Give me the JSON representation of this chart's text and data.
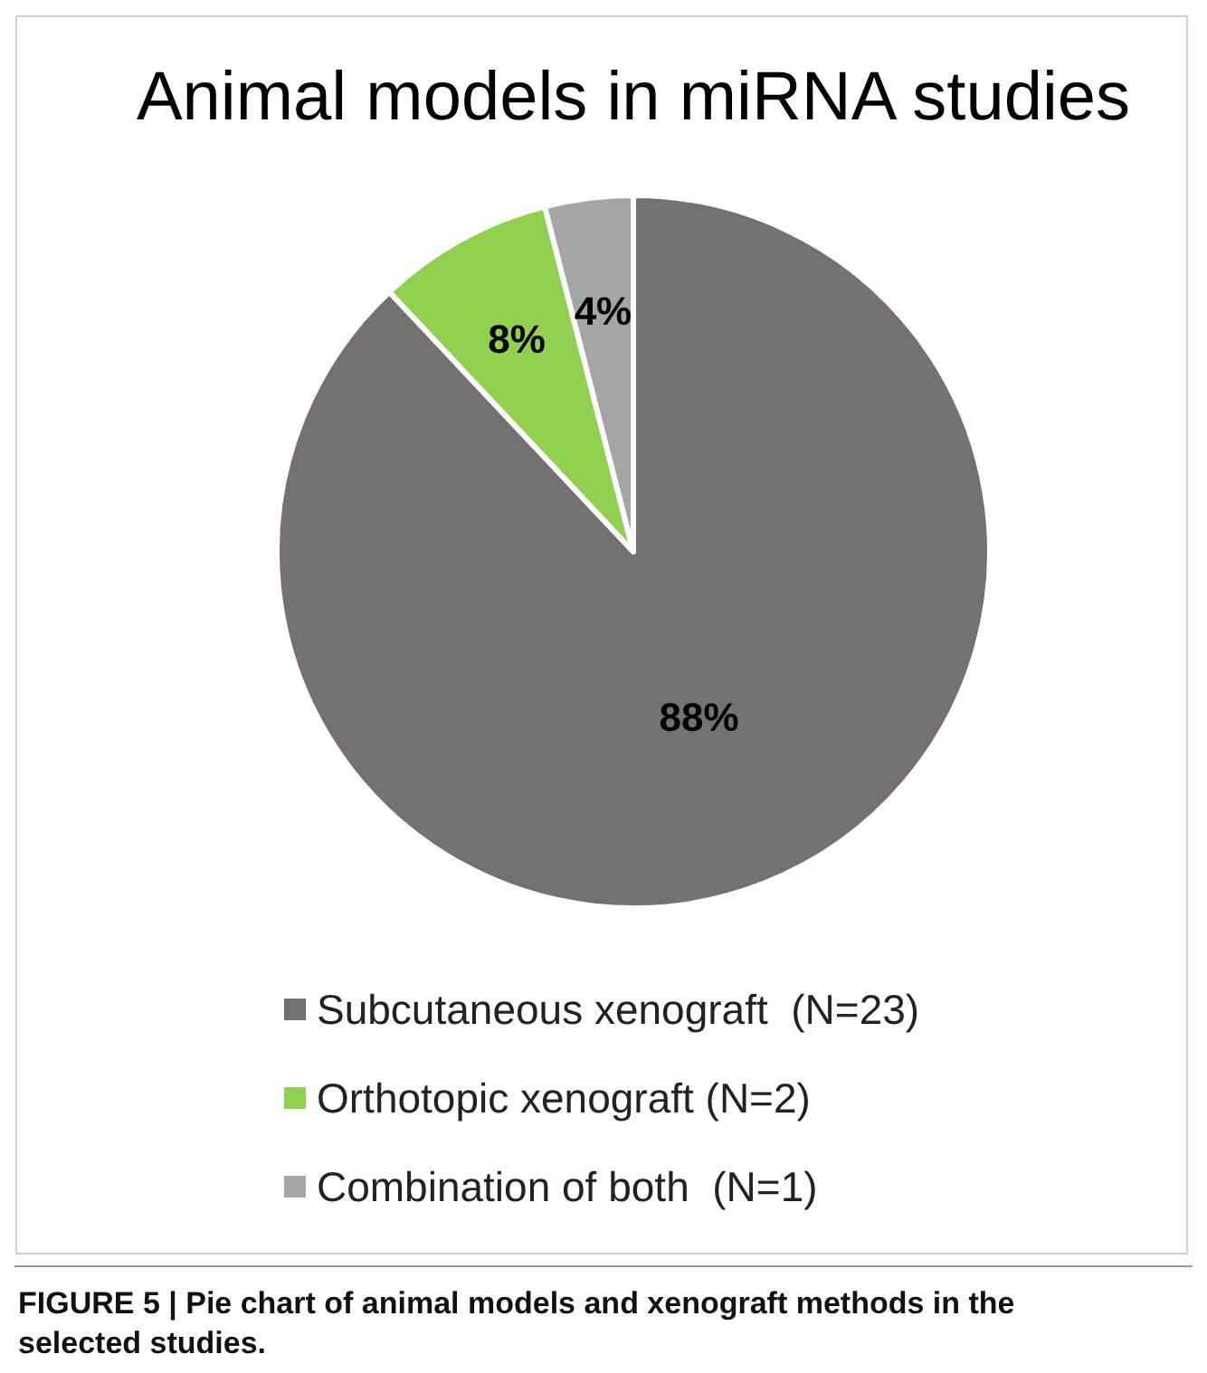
{
  "chart_data": {
    "type": "pie",
    "title": "Animal models in miRNA studies",
    "categories": [
      "Subcutaneous xenograft  (N=23)",
      "Orthotopic xenograft (N=2)",
      "Combination of both  (N=1)"
    ],
    "values": [
      88,
      8,
      4
    ],
    "colors": [
      "#767171",
      "#92d050",
      "#a5a5a5"
    ],
    "value_labels": [
      "88%",
      "8%",
      "4%"
    ],
    "legend": "bottom",
    "annotations": [
      "FIGURE 5 | Pie chart of animal models and xenograft methods in the selected studies."
    ]
  }
}
